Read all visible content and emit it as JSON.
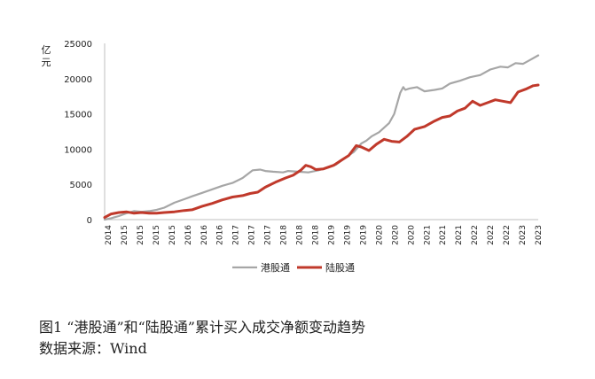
{
  "chart_data": {
    "type": "line",
    "ylabel": "亿元",
    "ylim": [
      0,
      25000
    ],
    "yticks": [
      "0",
      "5000",
      "10000",
      "15000",
      "20000",
      "25000"
    ],
    "xtick_labels": [
      "2014",
      "2015",
      "2015",
      "2015",
      "2015",
      "2016",
      "2016",
      "2016",
      "2017",
      "2017",
      "2017",
      "2018",
      "2018",
      "2018",
      "2019",
      "2019",
      "2019",
      "2020",
      "2020",
      "2020",
      "2021",
      "2021",
      "2021",
      "2022",
      "2022",
      "2022",
      "2023",
      "2023"
    ],
    "x_range": [
      2014.87,
      2023.45
    ],
    "legend_position": "bottom",
    "series": [
      {
        "name": "港股通",
        "color": "#a6a6a6",
        "x": [
          2014.87,
          2015.0,
          2015.15,
          2015.3,
          2015.45,
          2015.6,
          2015.75,
          2015.9,
          2016.05,
          2016.25,
          2016.45,
          2016.6,
          2016.8,
          2017.0,
          2017.2,
          2017.4,
          2017.6,
          2017.8,
          2017.95,
          2018.05,
          2018.2,
          2018.4,
          2018.5,
          2018.7,
          2018.9,
          2019.1,
          2019.3,
          2019.45,
          2019.6,
          2019.8,
          2019.95,
          2020.05,
          2020.15,
          2020.3,
          2020.5,
          2020.6,
          2020.72,
          2020.78,
          2020.82,
          2020.9,
          2021.05,
          2021.2,
          2021.4,
          2021.55,
          2021.7,
          2021.9,
          2022.1,
          2022.3,
          2022.5,
          2022.7,
          2022.85,
          2023.0,
          2023.15,
          2023.3,
          2023.45
        ],
        "y": [
          0,
          200,
          500,
          900,
          1200,
          1100,
          1200,
          1400,
          1700,
          2400,
          2900,
          3300,
          3800,
          4300,
          4800,
          5200,
          5900,
          7000,
          7100,
          6900,
          6800,
          6700,
          6900,
          6800,
          6700,
          7000,
          7400,
          7800,
          8600,
          9600,
          10800,
          11200,
          11800,
          12400,
          13700,
          15000,
          18000,
          18800,
          18400,
          18600,
          18800,
          18200,
          18400,
          18600,
          19300,
          19700,
          20200,
          20500,
          21300,
          21700,
          21600,
          22200,
          22100,
          22700,
          23300
        ]
      },
      {
        "name": "陆股通",
        "color": "#c0392b",
        "x": [
          2014.87,
          2015.0,
          2015.15,
          2015.3,
          2015.45,
          2015.6,
          2015.75,
          2015.9,
          2016.05,
          2016.25,
          2016.45,
          2016.6,
          2016.8,
          2017.0,
          2017.2,
          2017.4,
          2017.6,
          2017.75,
          2017.9,
          2018.05,
          2018.25,
          2018.45,
          2018.6,
          2018.75,
          2018.85,
          2018.95,
          2019.05,
          2019.2,
          2019.4,
          2019.55,
          2019.7,
          2019.85,
          2019.95,
          2020.1,
          2020.25,
          2020.4,
          2020.55,
          2020.7,
          2020.85,
          2021.0,
          2021.2,
          2021.4,
          2021.55,
          2021.7,
          2021.85,
          2022.0,
          2022.15,
          2022.3,
          2022.45,
          2022.6,
          2022.75,
          2022.9,
          2023.05,
          2023.2,
          2023.35,
          2023.45
        ],
        "y": [
          300,
          800,
          1000,
          1100,
          900,
          1000,
          900,
          900,
          1000,
          1100,
          1300,
          1400,
          1900,
          2300,
          2800,
          3200,
          3400,
          3700,
          3900,
          4600,
          5300,
          5900,
          6300,
          7000,
          7700,
          7500,
          7100,
          7200,
          7700,
          8400,
          9100,
          10500,
          10300,
          9800,
          10700,
          11400,
          11100,
          11000,
          11800,
          12800,
          13200,
          14000,
          14500,
          14700,
          15400,
          15800,
          16800,
          16200,
          16600,
          17000,
          16800,
          16600,
          18100,
          18500,
          19000,
          19100
        ]
      }
    ]
  },
  "caption": {
    "figure_title": "图1 “港股通”和“陆股通”累计买入成交净额变动趋势",
    "source": "数据来源：Wind"
  }
}
